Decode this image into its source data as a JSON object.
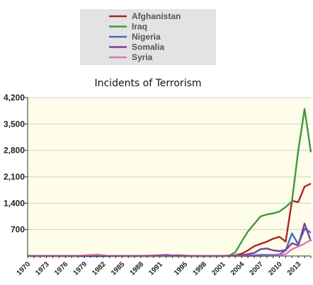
{
  "chart_data": {
    "type": "line",
    "title": "Incidents of Terrorism",
    "xlabel": "",
    "ylabel": "",
    "xlim": [
      1970,
      2015
    ],
    "ylim": [
      0,
      4200
    ],
    "y_ticks": [
      "4,200",
      "3,500",
      "2,800",
      "2,100",
      "1,400",
      "700"
    ],
    "y_tick_values": [
      4200,
      3500,
      2800,
      2100,
      1400,
      700
    ],
    "x_ticks": [
      "1970",
      "1973",
      "1976",
      "1979",
      "1982",
      "1985",
      "1988",
      "1991",
      "1995",
      "1998",
      "2001",
      "2004",
      "2007",
      "2010",
      "2013"
    ],
    "x_tick_values": [
      1970,
      1973,
      1976,
      1979,
      1982,
      1985,
      1988,
      1991,
      1995,
      1998,
      2001,
      2004,
      2007,
      2010,
      2013
    ],
    "legend_position": "top",
    "grid": true,
    "series": [
      {
        "name": "Afghanistan",
        "color": "#b22222",
        "x": [
          1970,
          1978,
          1979,
          1980,
          1985,
          1988,
          1990,
          1992,
          1995,
          1999,
          2001,
          2002,
          2003,
          2004,
          2005,
          2006,
          2007,
          2008,
          2009,
          2010,
          2011,
          2012,
          2013,
          2014,
          2015
        ],
        "y": [
          0,
          0,
          10,
          5,
          0,
          5,
          10,
          5,
          0,
          0,
          0,
          5,
          20,
          60,
          150,
          260,
          320,
          380,
          460,
          510,
          380,
          1460,
          1430,
          1840,
          1920
        ]
      },
      {
        "name": "Iraq",
        "color": "#3c9a3c",
        "x": [
          1970,
          1980,
          1990,
          1995,
          1999,
          2001,
          2002,
          2003,
          2004,
          2005,
          2006,
          2007,
          2008,
          2009,
          2010,
          2011,
          2012,
          2013,
          2014,
          2015
        ],
        "y": [
          0,
          0,
          0,
          0,
          0,
          0,
          10,
          100,
          380,
          650,
          850,
          1050,
          1100,
          1130,
          1180,
          1300,
          1450,
          2800,
          3900,
          2750
        ]
      },
      {
        "name": "Nigeria",
        "color": "#3a6fc4",
        "x": [
          1970,
          2000,
          2005,
          2006,
          2007,
          2008,
          2009,
          2010,
          2011,
          2012,
          2013,
          2014,
          2015
        ],
        "y": [
          0,
          0,
          10,
          20,
          30,
          30,
          30,
          40,
          150,
          600,
          310,
          720,
          620
        ]
      },
      {
        "name": "Somalia",
        "color": "#7b3f9e",
        "x": [
          1970,
          1989,
          1990,
          1991,
          1992,
          1993,
          1994,
          1995,
          1996,
          2000,
          2004,
          2005,
          2006,
          2007,
          2008,
          2009,
          2010,
          2011,
          2012,
          2013,
          2014,
          2015
        ],
        "y": [
          0,
          0,
          10,
          20,
          30,
          15,
          20,
          10,
          5,
          0,
          20,
          50,
          80,
          180,
          200,
          150,
          130,
          160,
          340,
          280,
          860,
          390
        ]
      },
      {
        "name": "Syria",
        "color": "#d97ab8",
        "x": [
          1970,
          1978,
          1979,
          1980,
          1981,
          1982,
          1983,
          1990,
          2000,
          2007,
          2008,
          2009,
          2010,
          2011,
          2012,
          2013,
          2014,
          2015
        ],
        "y": [
          0,
          0,
          20,
          30,
          40,
          20,
          0,
          0,
          0,
          0,
          5,
          10,
          20,
          50,
          180,
          250,
          330,
          430
        ]
      }
    ]
  }
}
